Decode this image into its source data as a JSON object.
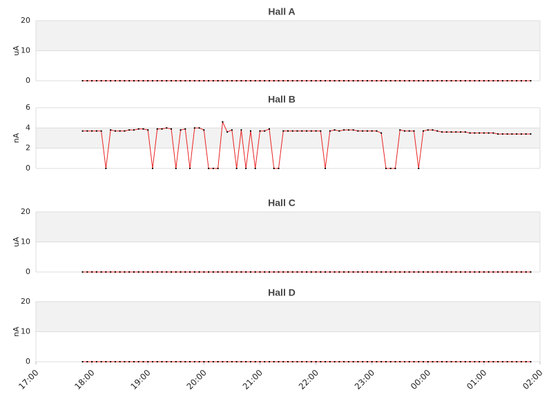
{
  "chart_data": [
    {
      "type": "line",
      "title": "Hall A",
      "ylabel": "uA",
      "ylim": [
        0,
        20
      ],
      "yticks": [
        0,
        10,
        20
      ],
      "xlim": [
        0,
        540
      ],
      "color": "#e8201f",
      "marker_color": "#000000",
      "grid": true,
      "x": [
        50,
        55,
        60,
        65,
        70,
        75,
        80,
        85,
        90,
        95,
        100,
        105,
        110,
        115,
        120,
        125,
        130,
        135,
        140,
        145,
        150,
        155,
        160,
        165,
        170,
        175,
        180,
        185,
        190,
        195,
        200,
        205,
        210,
        215,
        220,
        225,
        230,
        235,
        240,
        245,
        250,
        255,
        260,
        265,
        270,
        275,
        280,
        285,
        290,
        295,
        300,
        305,
        310,
        315,
        320,
        325,
        330,
        335,
        340,
        345,
        350,
        355,
        360,
        365,
        370,
        375,
        380,
        385,
        390,
        395,
        400,
        405,
        410,
        415,
        420,
        425,
        430,
        435,
        440,
        445,
        450,
        455,
        460,
        465,
        470,
        475,
        480,
        485,
        490,
        495,
        500,
        505,
        510,
        515,
        520,
        525,
        530
      ],
      "values": [
        0,
        0,
        0,
        0,
        0,
        0,
        0,
        0,
        0,
        0,
        0,
        0,
        0,
        0,
        0,
        0,
        0,
        0,
        0,
        0,
        0,
        0,
        0,
        0,
        0,
        0,
        0,
        0,
        0,
        0,
        0,
        0,
        0,
        0,
        0,
        0,
        0,
        0,
        0,
        0,
        0,
        0,
        0,
        0,
        0,
        0,
        0,
        0,
        0,
        0,
        0,
        0,
        0,
        0,
        0,
        0,
        0,
        0,
        0,
        0,
        0,
        0,
        0,
        0,
        0,
        0,
        0,
        0,
        0,
        0,
        0,
        0,
        0,
        0,
        0,
        0,
        0,
        0,
        0,
        0,
        0,
        0,
        0,
        0,
        0,
        0,
        0,
        0,
        0,
        0,
        0,
        0,
        0,
        0,
        0,
        0,
        0
      ]
    },
    {
      "type": "line",
      "title": "Hall B",
      "ylabel": "nA",
      "ylim": [
        0,
        6
      ],
      "yticks": [
        0,
        2,
        4,
        6
      ],
      "xlim": [
        0,
        540
      ],
      "color": "#e8201f",
      "marker_color": "#000000",
      "grid": true,
      "x": [
        50,
        55,
        60,
        65,
        70,
        75,
        80,
        85,
        90,
        95,
        100,
        105,
        110,
        115,
        120,
        125,
        130,
        135,
        140,
        145,
        150,
        155,
        160,
        165,
        170,
        175,
        180,
        185,
        190,
        195,
        200,
        205,
        210,
        215,
        220,
        225,
        230,
        235,
        240,
        245,
        250,
        255,
        260,
        265,
        270,
        275,
        280,
        285,
        290,
        295,
        300,
        305,
        310,
        315,
        320,
        325,
        330,
        335,
        340,
        345,
        350,
        355,
        360,
        365,
        370,
        375,
        380,
        385,
        390,
        395,
        400,
        405,
        410,
        415,
        420,
        425,
        430,
        435,
        440,
        445,
        450,
        455,
        460,
        465,
        470,
        475,
        480,
        485,
        490,
        495,
        500,
        505,
        510,
        515,
        520,
        525,
        530
      ],
      "values": [
        3.7,
        3.7,
        3.7,
        3.7,
        3.7,
        0,
        3.8,
        3.7,
        3.7,
        3.7,
        3.8,
        3.8,
        3.9,
        3.9,
        3.8,
        0,
        3.9,
        3.9,
        4.0,
        3.9,
        0,
        3.8,
        3.9,
        0,
        4.0,
        4.0,
        3.8,
        0,
        0,
        0,
        4.6,
        3.6,
        3.8,
        0,
        3.8,
        0,
        3.7,
        0,
        3.7,
        3.7,
        3.9,
        0,
        0,
        3.7,
        3.7,
        3.7,
        3.7,
        3.7,
        3.7,
        3.7,
        3.7,
        3.7,
        0,
        3.7,
        3.8,
        3.7,
        3.8,
        3.8,
        3.8,
        3.7,
        3.7,
        3.7,
        3.7,
        3.7,
        3.5,
        0,
        0,
        0,
        3.8,
        3.7,
        3.7,
        3.7,
        0,
        3.7,
        3.8,
        3.8,
        3.7,
        3.6,
        3.6,
        3.6,
        3.6,
        3.6,
        3.6,
        3.5,
        3.5,
        3.5,
        3.5,
        3.5,
        3.5,
        3.4,
        3.4,
        3.4,
        3.4,
        3.4,
        3.4,
        3.4,
        3.4
      ]
    },
    {
      "type": "line",
      "title": "Hall C",
      "ylabel": "uA",
      "ylim": [
        0,
        20
      ],
      "yticks": [
        0,
        10,
        20
      ],
      "xlim": [
        0,
        540
      ],
      "color": "#e8201f",
      "marker_color": "#000000",
      "grid": true,
      "x": [
        50,
        55,
        60,
        65,
        70,
        75,
        80,
        85,
        90,
        95,
        100,
        105,
        110,
        115,
        120,
        125,
        130,
        135,
        140,
        145,
        150,
        155,
        160,
        165,
        170,
        175,
        180,
        185,
        190,
        195,
        200,
        205,
        210,
        215,
        220,
        225,
        230,
        235,
        240,
        245,
        250,
        255,
        260,
        265,
        270,
        275,
        280,
        285,
        290,
        295,
        300,
        305,
        310,
        315,
        320,
        325,
        330,
        335,
        340,
        345,
        350,
        355,
        360,
        365,
        370,
        375,
        380,
        385,
        390,
        395,
        400,
        405,
        410,
        415,
        420,
        425,
        430,
        435,
        440,
        445,
        450,
        455,
        460,
        465,
        470,
        475,
        480,
        485,
        490,
        495,
        500,
        505,
        510,
        515,
        520,
        525,
        530
      ],
      "values": [
        0,
        0,
        0,
        0,
        0,
        0,
        0,
        0,
        0,
        0,
        0,
        0,
        0,
        0,
        0,
        0,
        0,
        0,
        0,
        0,
        0,
        0,
        0,
        0,
        0,
        0,
        0,
        0,
        0,
        0,
        0,
        0,
        0,
        0,
        0,
        0,
        0,
        0,
        0,
        0,
        0,
        0,
        0,
        0,
        0,
        0,
        0,
        0,
        0,
        0,
        0,
        0,
        0,
        0,
        0,
        0,
        0,
        0,
        0,
        0,
        0,
        0,
        0,
        0,
        0,
        0,
        0,
        0,
        0,
        0,
        0,
        0,
        0,
        0,
        0,
        0,
        0,
        0,
        0,
        0,
        0,
        0,
        0,
        0,
        0,
        0,
        0,
        0,
        0,
        0,
        0,
        0,
        0,
        0,
        0,
        0,
        0
      ]
    },
    {
      "type": "line",
      "title": "Hall D",
      "ylabel": "nA",
      "ylim": [
        0,
        20
      ],
      "yticks": [
        0,
        10,
        20
      ],
      "xlim": [
        0,
        540
      ],
      "color": "#e8201f",
      "marker_color": "#000000",
      "grid": true,
      "xticks": [
        {
          "value": 0,
          "label": "17:00"
        },
        {
          "value": 60,
          "label": "18:00"
        },
        {
          "value": 120,
          "label": "19:00"
        },
        {
          "value": 180,
          "label": "20:00"
        },
        {
          "value": 240,
          "label": "21:00"
        },
        {
          "value": 300,
          "label": "22:00"
        },
        {
          "value": 360,
          "label": "23:00"
        },
        {
          "value": 420,
          "label": "00:00"
        },
        {
          "value": 480,
          "label": "01:00"
        },
        {
          "value": 540,
          "label": "02:00"
        }
      ],
      "x": [
        50,
        55,
        60,
        65,
        70,
        75,
        80,
        85,
        90,
        95,
        100,
        105,
        110,
        115,
        120,
        125,
        130,
        135,
        140,
        145,
        150,
        155,
        160,
        165,
        170,
        175,
        180,
        185,
        190,
        195,
        200,
        205,
        210,
        215,
        220,
        225,
        230,
        235,
        240,
        245,
        250,
        255,
        260,
        265,
        270,
        275,
        280,
        285,
        290,
        295,
        300,
        305,
        310,
        315,
        320,
        325,
        330,
        335,
        340,
        345,
        350,
        355,
        360,
        365,
        370,
        375,
        380,
        385,
        390,
        395,
        400,
        405,
        410,
        415,
        420,
        425,
        430,
        435,
        440,
        445,
        450,
        455,
        460,
        465,
        470,
        475,
        480,
        485,
        490,
        495,
        500,
        505,
        510,
        515,
        520,
        525,
        530
      ],
      "values": [
        0,
        0,
        0,
        0,
        0,
        0,
        0,
        0,
        0,
        0,
        0,
        0,
        0,
        0,
        0,
        0,
        0,
        0,
        0,
        0,
        0,
        0,
        0,
        0,
        0,
        0,
        0,
        0,
        0,
        0,
        0,
        0,
        0,
        0,
        0,
        0,
        0,
        0,
        0,
        0,
        0,
        0,
        0,
        0,
        0,
        0,
        0,
        0,
        0,
        0,
        0,
        0,
        0,
        0,
        0,
        0,
        0,
        0,
        0,
        0,
        0,
        0,
        0,
        0,
        0,
        0,
        0,
        0,
        0,
        0,
        0,
        0,
        0,
        0,
        0,
        0,
        0,
        0,
        0,
        0,
        0,
        0,
        0,
        0,
        0,
        0,
        0,
        0,
        0,
        0,
        0,
        0,
        0,
        0,
        0,
        0,
        0
      ]
    }
  ]
}
